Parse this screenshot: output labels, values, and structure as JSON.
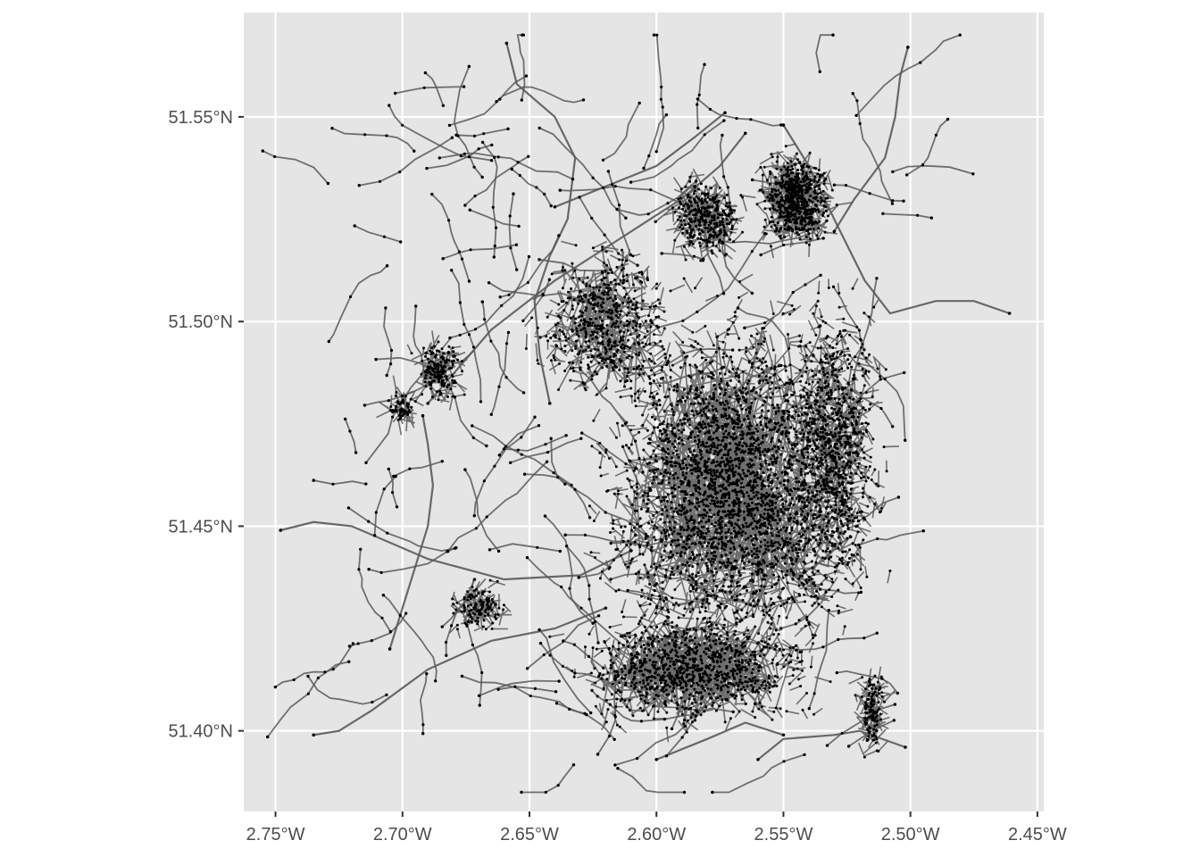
{
  "chart_data": {
    "type": "map",
    "description_kind": "street network with nodes (edges as grey lines, nodes as black points)",
    "x_axis": {
      "ticks": [
        {
          "value": -2.75,
          "label": "2.75°W"
        },
        {
          "value": -2.7,
          "label": "2.70°W"
        },
        {
          "value": -2.65,
          "label": "2.65°W"
        },
        {
          "value": -2.6,
          "label": "2.60°W"
        },
        {
          "value": -2.55,
          "label": "2.55°W"
        },
        {
          "value": -2.5,
          "label": "2.50°W"
        },
        {
          "value": -2.45,
          "label": "2.45°W"
        }
      ],
      "range": [
        -2.7625,
        -2.4475
      ]
    },
    "y_axis": {
      "ticks": [
        {
          "value": 51.4,
          "label": "51.40°N"
        },
        {
          "value": 51.45,
          "label": "51.45°N"
        },
        {
          "value": 51.5,
          "label": "51.50°N"
        },
        {
          "value": 51.55,
          "label": "51.55°N"
        }
      ],
      "range": [
        51.3803,
        51.5755
      ]
    },
    "grid": true,
    "colors": {
      "panel_background": "#e5e5e5",
      "grid": "#ffffff",
      "edges": "#595959",
      "nodes": "#000000",
      "tick_text": "#4d4d4d",
      "tick_marks": "#333333"
    },
    "major_roads": [
      {
        "name": "",
        "points": [
          [
            -2.748,
            51.449
          ],
          [
            -2.735,
            51.451
          ],
          [
            -2.72,
            51.45
          ],
          [
            -2.69,
            51.442
          ],
          [
            -2.66,
            51.437
          ],
          [
            -2.63,
            51.438
          ],
          [
            -2.61,
            51.444
          ]
        ]
      },
      {
        "name": "",
        "points": [
          [
            -2.659,
            51.568
          ],
          [
            -2.655,
            51.558
          ],
          [
            -2.64,
            51.55
          ],
          [
            -2.632,
            51.54
          ],
          [
            -2.635,
            51.525
          ],
          [
            -2.642,
            51.516
          ],
          [
            -2.648,
            51.505
          ],
          [
            -2.646,
            51.492
          ],
          [
            -2.642,
            51.48
          ]
        ]
      },
      {
        "name": "",
        "points": [
          [
            -2.69,
            51.48
          ],
          [
            -2.665,
            51.498
          ],
          [
            -2.64,
            51.51
          ],
          [
            -2.615,
            51.52
          ],
          [
            -2.59,
            51.53
          ],
          [
            -2.575,
            51.538
          ],
          [
            -2.565,
            51.546
          ]
        ]
      },
      {
        "name": "",
        "points": [
          [
            -2.55,
            51.548
          ],
          [
            -2.54,
            51.538
          ],
          [
            -2.53,
            51.525
          ],
          [
            -2.518,
            51.51
          ],
          [
            -2.508,
            51.502
          ],
          [
            -2.49,
            51.505
          ],
          [
            -2.475,
            51.505
          ],
          [
            -2.461,
            51.502
          ]
        ]
      },
      {
        "name": "",
        "points": [
          [
            -2.501,
            51.567
          ],
          [
            -2.504,
            51.56
          ],
          [
            -2.506,
            51.55
          ],
          [
            -2.51,
            51.54
          ],
          [
            -2.522,
            51.53
          ],
          [
            -2.53,
            51.522
          ]
        ]
      },
      {
        "name": "",
        "points": [
          [
            -2.692,
            51.477
          ],
          [
            -2.69,
            51.47
          ],
          [
            -2.688,
            51.46
          ],
          [
            -2.69,
            51.45
          ],
          [
            -2.695,
            51.44
          ],
          [
            -2.7,
            51.43
          ],
          [
            -2.705,
            51.42
          ]
        ]
      },
      {
        "name": "",
        "points": [
          [
            -2.735,
            51.399
          ],
          [
            -2.725,
            51.4
          ],
          [
            -2.712,
            51.405
          ],
          [
            -2.69,
            51.415
          ],
          [
            -2.665,
            51.422
          ],
          [
            -2.64,
            51.425
          ],
          [
            -2.62,
            51.43
          ]
        ]
      },
      {
        "name": "",
        "points": [
          [
            -2.56,
            51.393
          ],
          [
            -2.55,
            51.398
          ],
          [
            -2.53,
            51.399
          ],
          [
            -2.52,
            51.4
          ],
          [
            -2.502,
            51.396
          ]
        ]
      },
      {
        "name": "",
        "points": [
          [
            -2.6,
            51.393
          ],
          [
            -2.58,
            51.398
          ],
          [
            -2.565,
            51.402
          ],
          [
            -2.55,
            51.399
          ]
        ]
      },
      {
        "name": "",
        "points": [
          [
            -2.573,
            51.551
          ],
          [
            -2.585,
            51.545
          ],
          [
            -2.6,
            51.538
          ],
          [
            -2.62,
            51.533
          ],
          [
            -2.64,
            51.528
          ]
        ]
      }
    ],
    "dense_areas": [
      {
        "name": "",
        "lon": -2.57,
        "lat": 51.46,
        "spread_lon": 0.055,
        "spread_lat": 0.045,
        "nodes": 2600
      },
      {
        "name": "",
        "lon": -2.545,
        "lat": 51.53,
        "spread_lon": 0.015,
        "spread_lat": 0.012,
        "nodes": 600
      },
      {
        "name": "",
        "lon": -2.53,
        "lat": 51.47,
        "spread_lon": 0.02,
        "spread_lat": 0.04,
        "nodes": 700
      },
      {
        "name": "",
        "lon": -2.585,
        "lat": 51.415,
        "spread_lon": 0.05,
        "spread_lat": 0.015,
        "nodes": 900
      },
      {
        "name": "",
        "lon": -2.62,
        "lat": 51.5,
        "spread_lon": 0.03,
        "spread_lat": 0.02,
        "nodes": 500
      },
      {
        "name": "",
        "lon": -2.58,
        "lat": 51.525,
        "spread_lon": 0.015,
        "spread_lat": 0.01,
        "nodes": 300
      },
      {
        "name": "",
        "lon": -2.685,
        "lat": 51.488,
        "spread_lon": 0.01,
        "spread_lat": 0.008,
        "nodes": 150
      },
      {
        "name": "",
        "lon": -2.67,
        "lat": 51.43,
        "spread_lon": 0.012,
        "spread_lat": 0.006,
        "nodes": 120
      },
      {
        "name": "",
        "lon": -2.515,
        "lat": 51.405,
        "spread_lon": 0.005,
        "spread_lat": 0.012,
        "nodes": 120
      },
      {
        "name": "",
        "lon": -2.7,
        "lat": 51.479,
        "spread_lon": 0.006,
        "spread_lat": 0.004,
        "nodes": 60
      }
    ],
    "sparse_outskirts": {
      "lon_range": [
        -2.73,
        -2.5
      ],
      "lat_range": [
        51.39,
        51.565
      ],
      "branches": 150
    }
  }
}
